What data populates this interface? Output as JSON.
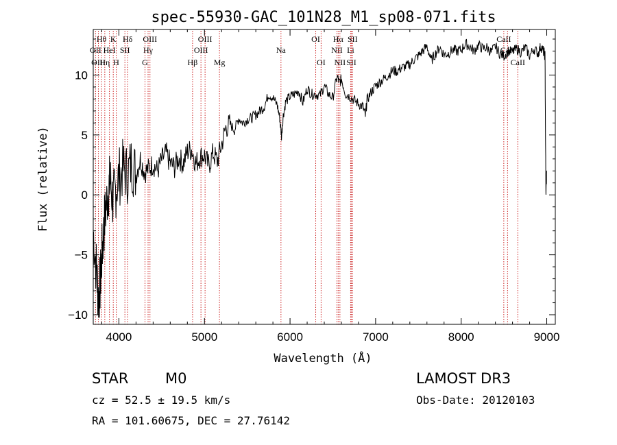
{
  "chart_data": {
    "type": "line",
    "title": "spec-55930-GAC_101N28_M1_sp08-071.fits",
    "xlabel": "Wavelength (Å)",
    "ylabel": "Flux (relative)",
    "xlim": [
      3700,
      9100
    ],
    "ylim": [
      -10.8,
      13.8
    ],
    "xticks": [
      4000,
      5000,
      6000,
      7000,
      8000,
      9000
    ],
    "yticks": [
      -10,
      -5,
      0,
      5,
      10
    ],
    "series": [
      {
        "name": "spectrum",
        "x": [
          3700,
          3740,
          3760,
          3780,
          3800,
          3820,
          3850,
          3880,
          3900,
          3930,
          3960,
          4000,
          4050,
          4100,
          4150,
          4200,
          4250,
          4300,
          4350,
          4400,
          4450,
          4500,
          4550,
          4600,
          4650,
          4700,
          4750,
          4800,
          4850,
          4900,
          4950,
          5000,
          5050,
          5100,
          5150,
          5200,
          5250,
          5300,
          5350,
          5400,
          5450,
          5500,
          5550,
          5600,
          5650,
          5700,
          5750,
          5800,
          5850,
          5880,
          5900,
          5920,
          5950,
          6000,
          6050,
          6100,
          6150,
          6200,
          6250,
          6300,
          6350,
          6400,
          6450,
          6500,
          6550,
          6580,
          6600,
          6650,
          6700,
          6750,
          6800,
          6850,
          6880,
          6900,
          6950,
          7000,
          7050,
          7100,
          7150,
          7200,
          7250,
          7300,
          7350,
          7400,
          7450,
          7500,
          7550,
          7600,
          7650,
          7700,
          7750,
          7800,
          7850,
          7900,
          7950,
          8000,
          8050,
          8100,
          8150,
          8200,
          8250,
          8300,
          8350,
          8400,
          8450,
          8500,
          8550,
          8600,
          8650,
          8700,
          8750,
          8800,
          8850,
          8900,
          8930,
          8960,
          8980,
          8990,
          9000
        ],
        "y": [
          -3.0,
          -6.5,
          -8.6,
          -7.5,
          -5.2,
          -3.0,
          -1.0,
          0.6,
          1.2,
          -0.6,
          0.4,
          1.5,
          2.2,
          1.7,
          2.7,
          1.7,
          3.0,
          1.9,
          2.2,
          2.6,
          2.0,
          2.9,
          3.5,
          2.6,
          2.3,
          3.1,
          2.6,
          3.6,
          3.8,
          2.6,
          3.2,
          3.3,
          2.4,
          3.5,
          2.8,
          4.2,
          5.6,
          5.9,
          5.4,
          6.4,
          6.0,
          6.3,
          6.4,
          6.7,
          7.0,
          7.4,
          8.4,
          8.1,
          7.5,
          6.4,
          4.9,
          6.6,
          7.8,
          8.2,
          8.4,
          8.7,
          7.7,
          8.9,
          8.4,
          8.4,
          8.3,
          9.1,
          8.4,
          8.1,
          9.9,
          9.3,
          9.7,
          8.4,
          8.2,
          7.9,
          7.6,
          7.4,
          6.6,
          7.9,
          8.6,
          9.1,
          9.4,
          9.7,
          10.0,
          10.4,
          10.3,
          10.6,
          10.7,
          10.9,
          11.3,
          11.6,
          12.0,
          12.4,
          11.2,
          11.8,
          12.3,
          11.7,
          11.8,
          12.1,
          12.0,
          12.1,
          12.6,
          12.4,
          12.0,
          12.5,
          12.2,
          12.3,
          11.9,
          12.4,
          11.8,
          11.6,
          12.0,
          11.9,
          12.2,
          11.9,
          12.3,
          11.6,
          12.2,
          11.8,
          12.4,
          12.0,
          11.6,
          0.0,
          2.0
        ]
      }
    ],
    "spectral_lines": [
      {
        "name": "Hθ",
        "wavelength": 3797,
        "row": 1
      },
      {
        "name": "OII",
        "wavelength": 3727,
        "row": 2
      },
      {
        "name": "OIII",
        "wavelength": 3760,
        "row": 3
      },
      {
        "name": "Hη",
        "wavelength": 3835,
        "row": 3
      },
      {
        "name": "HeI",
        "wavelength": 3889,
        "row": 2
      },
      {
        "name": "K",
        "wavelength": 3934,
        "row": 1
      },
      {
        "name": "H",
        "wavelength": 3969,
        "row": 3
      },
      {
        "name": "SII",
        "wavelength": 4070,
        "row": 2
      },
      {
        "name": "Hδ",
        "wavelength": 4102,
        "row": 1
      },
      {
        "name": "Hγ",
        "wavelength": 4341,
        "row": 2
      },
      {
        "name": "G",
        "wavelength": 4305,
        "row": 3
      },
      {
        "name": "OIII",
        "wavelength": 4363,
        "row": 1
      },
      {
        "name": "Hβ",
        "wavelength": 4861,
        "row": 3
      },
      {
        "name": "OIII",
        "wavelength": 4959,
        "row": 2
      },
      {
        "name": "OIII",
        "wavelength": 5007,
        "row": 1
      },
      {
        "name": "Mg",
        "wavelength": 5175,
        "row": 3
      },
      {
        "name": "Na",
        "wavelength": 5894,
        "row": 2
      },
      {
        "name": "OI",
        "wavelength": 6300,
        "row": 1
      },
      {
        "name": "OI",
        "wavelength": 6363,
        "row": 3
      },
      {
        "name": "NII",
        "wavelength": 6548,
        "row": 2
      },
      {
        "name": "Hα",
        "wavelength": 6563,
        "row": 1
      },
      {
        "name": "NII",
        "wavelength": 6583,
        "row": 3
      },
      {
        "name": "Li",
        "wavelength": 6708,
        "row": 2
      },
      {
        "name": "SII",
        "wavelength": 6716,
        "row": 3
      },
      {
        "name": "SII",
        "wavelength": 6731,
        "row": 1
      },
      {
        "name": "CaII",
        "wavelength": 8498,
        "row": 1
      },
      {
        "name": "CaII",
        "wavelength": 8542,
        "row": 2
      },
      {
        "name": "CaII",
        "wavelength": 8662,
        "row": 3
      }
    ]
  },
  "info": {
    "class": "STAR",
    "subclass": "M0",
    "survey": "LAMOST DR3",
    "cz": "cz = 52.5 ± 19.5 km/s",
    "obs_date": "Obs-Date: 20120103",
    "coords": "RA = 101.60675, DEC =  27.76142"
  },
  "colors": {
    "spectrum": "#000000",
    "line_markers": "#cc2222",
    "axes": "#000000"
  }
}
